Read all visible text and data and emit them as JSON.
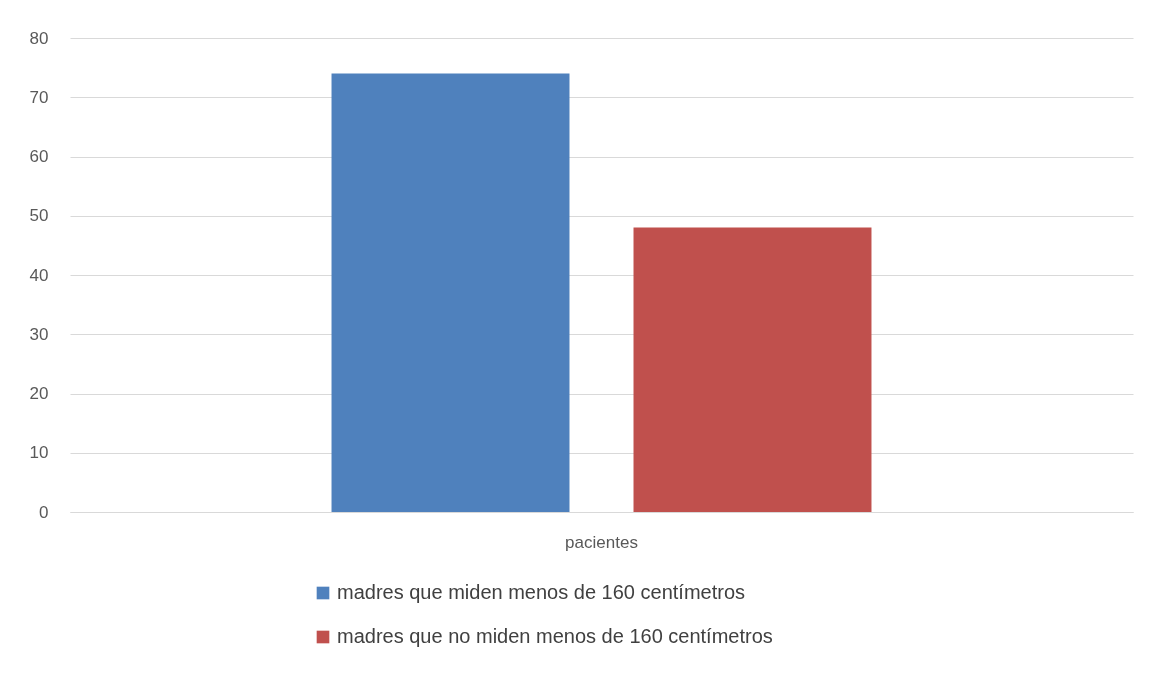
{
  "chart_data": {
    "type": "bar",
    "categories": [
      "pacientes"
    ],
    "series": [
      {
        "name": "madres que miden menos de 160 centímetros",
        "color": "#4f81bd",
        "values": [
          74
        ]
      },
      {
        "name": "madres que no miden menos de 160 centímetros",
        "color": "#c0504d",
        "values": [
          48
        ]
      }
    ],
    "ylim": [
      0,
      80
    ],
    "yticks": [
      0,
      10,
      20,
      30,
      40,
      50,
      60,
      70,
      80
    ],
    "grid": "y",
    "legend": "bottom"
  }
}
